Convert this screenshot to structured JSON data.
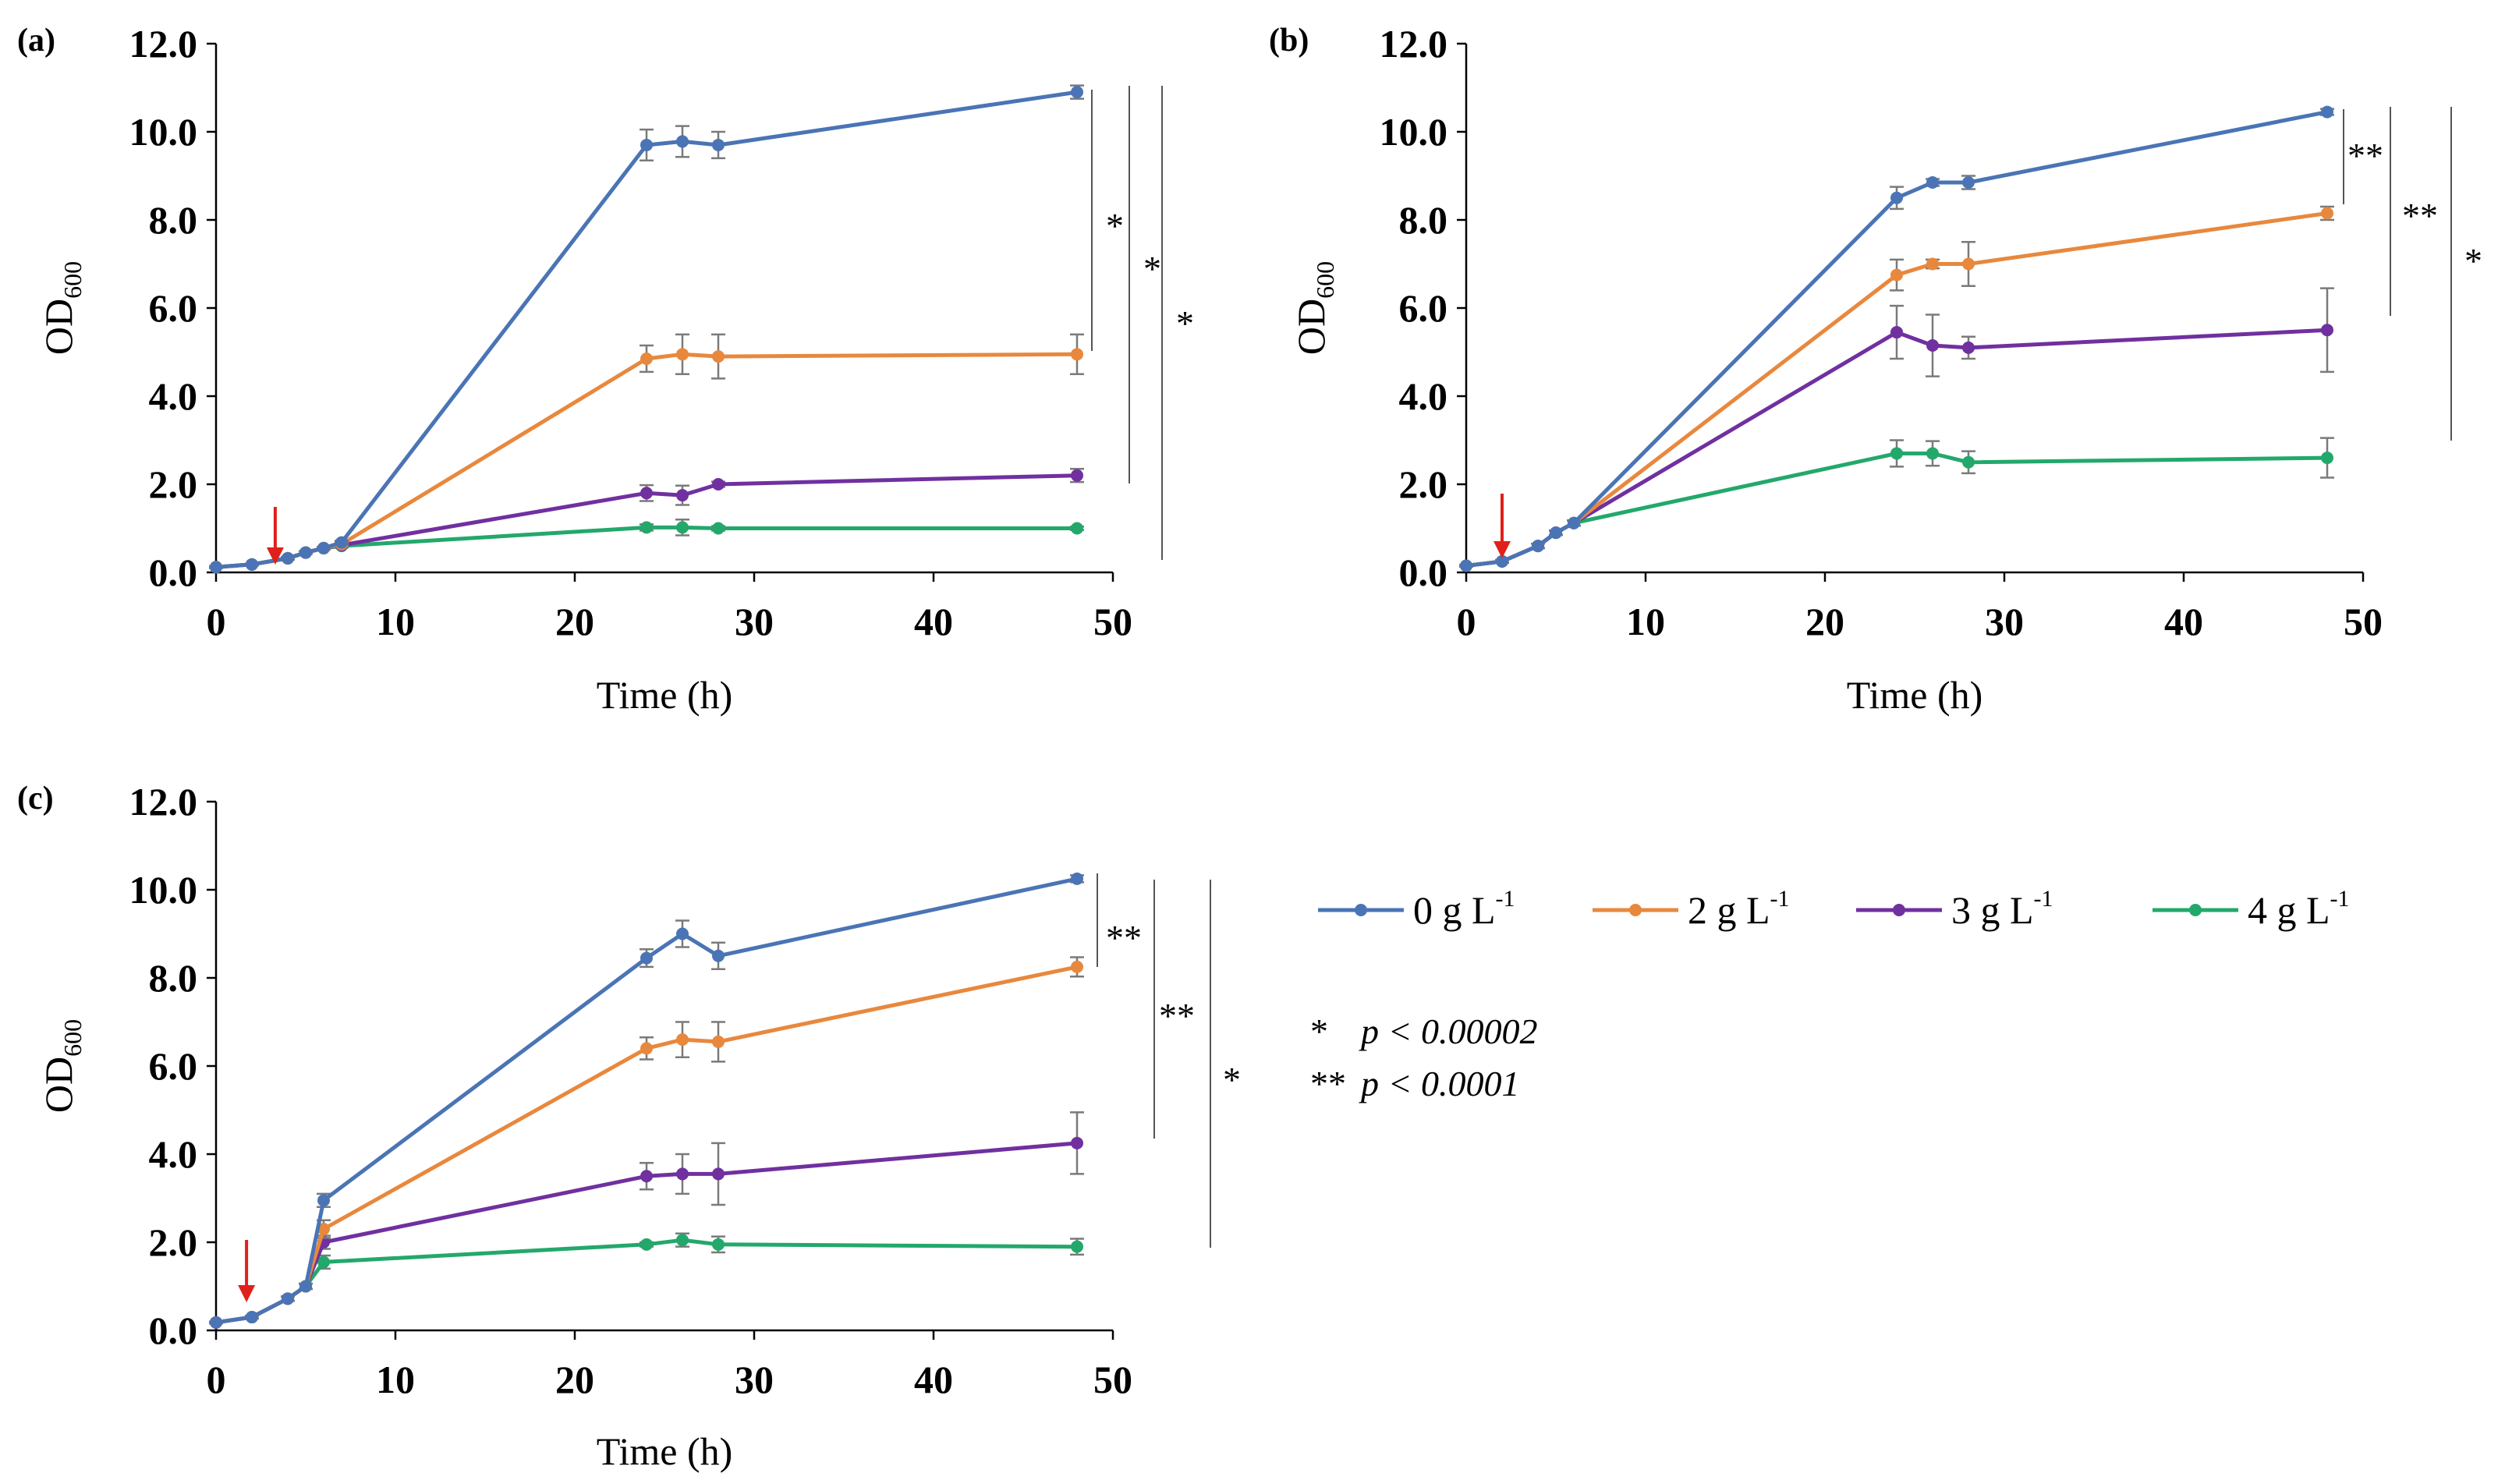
{
  "legend": {
    "items": [
      {
        "label": "0 g L",
        "sup": "-1",
        "color": "#4a74b5"
      },
      {
        "label": "2 g L",
        "sup": "-1",
        "color": "#e8883d"
      },
      {
        "label": "3 g L",
        "sup": "-1",
        "color": "#7030a0"
      },
      {
        "label": "4 g L",
        "sup": "-1",
        "color": "#23a86b"
      }
    ]
  },
  "significance_key": [
    {
      "symbol": "*",
      "text": "p < 0.00002"
    },
    {
      "symbol": "**",
      "text": "p < 0.0001"
    }
  ],
  "chart_data": [
    {
      "panel": "(a)",
      "type": "line",
      "xlabel": "Time (h)",
      "ylabel": "OD",
      "ylabel_sub": "600",
      "xlim": [
        0,
        50
      ],
      "ylim": [
        0,
        12
      ],
      "xticks": [
        "0",
        "10",
        "20",
        "30",
        "40",
        "50"
      ],
      "yticks": [
        "0.0",
        "2.0",
        "4.0",
        "6.0",
        "8.0",
        "10.0",
        "12.0"
      ],
      "grid": false,
      "inducer_arrow_x": 3.3,
      "significance": [
        "*",
        "*",
        "*"
      ],
      "series": [
        {
          "name": "0 g L-1",
          "x": [
            0,
            2,
            4,
            5,
            6,
            7,
            24,
            26,
            28,
            48
          ],
          "y": [
            0.12,
            0.18,
            0.32,
            0.45,
            0.55,
            0.68,
            9.7,
            9.78,
            9.7,
            10.9
          ],
          "err": [
            0.02,
            0.02,
            0.03,
            0.03,
            0.03,
            0.04,
            0.35,
            0.35,
            0.3,
            0.15
          ]
        },
        {
          "name": "2 g L-1",
          "x": [
            0,
            2,
            4,
            5,
            6,
            7,
            24,
            26,
            28,
            48
          ],
          "y": [
            0.12,
            0.18,
            0.32,
            0.45,
            0.55,
            0.64,
            4.85,
            4.95,
            4.9,
            4.95
          ],
          "err": [
            0.02,
            0.02,
            0.03,
            0.03,
            0.03,
            0.04,
            0.3,
            0.45,
            0.5,
            0.45
          ]
        },
        {
          "name": "3 g L-1",
          "x": [
            0,
            2,
            4,
            5,
            6,
            7,
            24,
            26,
            28,
            48
          ],
          "y": [
            0.12,
            0.18,
            0.32,
            0.45,
            0.55,
            0.62,
            1.8,
            1.75,
            2.0,
            2.2
          ],
          "err": [
            0.02,
            0.02,
            0.03,
            0.03,
            0.03,
            0.04,
            0.18,
            0.22,
            0.06,
            0.15
          ]
        },
        {
          "name": "4 g L-1",
          "x": [
            0,
            2,
            4,
            5,
            6,
            7,
            24,
            26,
            28,
            48
          ],
          "y": [
            0.12,
            0.18,
            0.32,
            0.45,
            0.55,
            0.6,
            1.02,
            1.02,
            1.0,
            1.0
          ],
          "err": [
            0.02,
            0.02,
            0.03,
            0.03,
            0.03,
            0.04,
            0.07,
            0.18,
            0.05,
            0.04
          ]
        }
      ]
    },
    {
      "panel": "(b)",
      "type": "line",
      "xlabel": "Time (h)",
      "ylabel": "OD",
      "ylabel_sub": "600",
      "xlim": [
        0,
        50
      ],
      "ylim": [
        0,
        12
      ],
      "xticks": [
        "0",
        "10",
        "20",
        "30",
        "40",
        "50"
      ],
      "yticks": [
        "0.0",
        "2.0",
        "4.0",
        "6.0",
        "8.0",
        "10.0",
        "12.0"
      ],
      "grid": false,
      "inducer_arrow_x": 2,
      "significance": [
        "**",
        "**",
        "*"
      ],
      "series": [
        {
          "name": "0 g L-1",
          "x": [
            0,
            2,
            4,
            5,
            6,
            24,
            26,
            28,
            48
          ],
          "y": [
            0.15,
            0.25,
            0.6,
            0.9,
            1.12,
            8.5,
            8.85,
            8.85,
            10.45
          ],
          "err": [
            0.02,
            0.03,
            0.05,
            0.05,
            0.06,
            0.25,
            0.08,
            0.15,
            0.07
          ]
        },
        {
          "name": "2 g L-1",
          "x": [
            0,
            2,
            4,
            5,
            6,
            24,
            26,
            28,
            48
          ],
          "y": [
            0.15,
            0.25,
            0.6,
            0.9,
            1.12,
            6.75,
            7.0,
            7.0,
            8.15
          ],
          "err": [
            0.02,
            0.03,
            0.05,
            0.05,
            0.06,
            0.35,
            0.1,
            0.5,
            0.15
          ]
        },
        {
          "name": "3 g L-1",
          "x": [
            0,
            2,
            4,
            5,
            6,
            24,
            26,
            28,
            48
          ],
          "y": [
            0.15,
            0.25,
            0.6,
            0.9,
            1.12,
            5.45,
            5.15,
            5.1,
            5.5
          ],
          "err": [
            0.02,
            0.03,
            0.05,
            0.05,
            0.06,
            0.6,
            0.7,
            0.25,
            0.95
          ]
        },
        {
          "name": "4 g L-1",
          "x": [
            0,
            2,
            4,
            5,
            6,
            24,
            26,
            28,
            48
          ],
          "y": [
            0.15,
            0.25,
            0.6,
            0.9,
            1.12,
            2.7,
            2.7,
            2.5,
            2.6
          ],
          "err": [
            0.02,
            0.03,
            0.05,
            0.05,
            0.06,
            0.3,
            0.28,
            0.25,
            0.45
          ]
        }
      ]
    },
    {
      "panel": "(c)",
      "type": "line",
      "xlabel": "Time (h)",
      "ylabel": "OD",
      "ylabel_sub": "600",
      "xlim": [
        0,
        50
      ],
      "ylim": [
        0,
        12
      ],
      "xticks": [
        "0",
        "10",
        "20",
        "30",
        "40",
        "50"
      ],
      "yticks": [
        "0.0",
        "2.0",
        "4.0",
        "6.0",
        "8.0",
        "10.0",
        "12.0"
      ],
      "grid": false,
      "inducer_arrow_x": 1.7,
      "significance": [
        "**",
        "**",
        "*"
      ],
      "series": [
        {
          "name": "0 g L-1",
          "x": [
            0,
            2,
            4,
            5,
            6,
            24,
            26,
            28,
            48
          ],
          "y": [
            0.18,
            0.3,
            0.72,
            1.0,
            2.95,
            8.45,
            9.0,
            8.5,
            10.25
          ],
          "err": [
            0.02,
            0.03,
            0.05,
            0.06,
            0.15,
            0.2,
            0.3,
            0.3,
            0.08
          ]
        },
        {
          "name": "2 g L-1",
          "x": [
            0,
            2,
            4,
            5,
            6,
            24,
            26,
            28,
            48
          ],
          "y": [
            0.18,
            0.3,
            0.72,
            1.0,
            2.3,
            6.4,
            6.6,
            6.55,
            8.25
          ],
          "err": [
            0.02,
            0.03,
            0.05,
            0.06,
            0.2,
            0.25,
            0.4,
            0.45,
            0.22
          ]
        },
        {
          "name": "3 g L-1",
          "x": [
            0,
            2,
            4,
            5,
            6,
            24,
            26,
            28,
            48
          ],
          "y": [
            0.18,
            0.3,
            0.72,
            1.0,
            2.0,
            3.5,
            3.55,
            3.55,
            4.25
          ],
          "err": [
            0.02,
            0.03,
            0.05,
            0.06,
            0.15,
            0.3,
            0.45,
            0.7,
            0.7
          ]
        },
        {
          "name": "4 g L-1",
          "x": [
            0,
            2,
            4,
            5,
            6,
            24,
            26,
            28,
            48
          ],
          "y": [
            0.18,
            0.3,
            0.72,
            1.0,
            1.55,
            1.95,
            2.05,
            1.95,
            1.9
          ],
          "err": [
            0.02,
            0.03,
            0.05,
            0.06,
            0.15,
            0.05,
            0.15,
            0.18,
            0.18
          ]
        }
      ]
    }
  ]
}
